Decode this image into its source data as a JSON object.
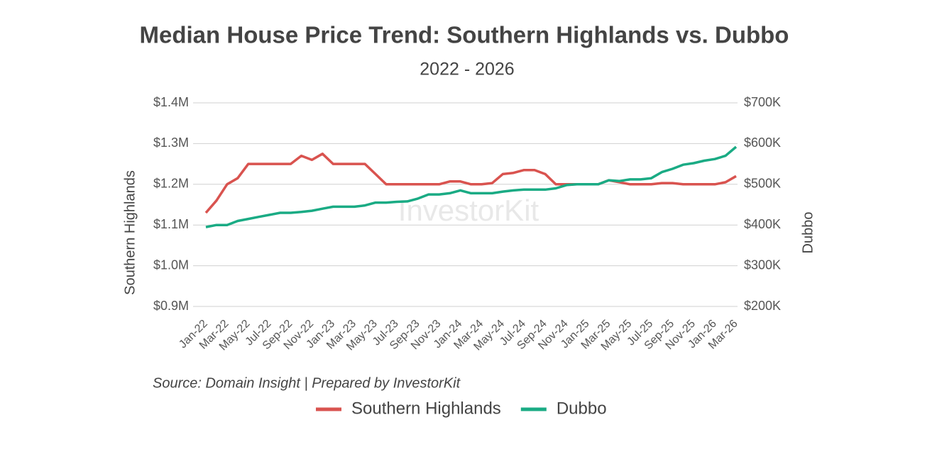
{
  "chart_data": {
    "type": "line",
    "title": "Median House Price Trend: Southern Highlands vs. Dubbo",
    "subtitle": "2022 - 2026",
    "y_label": "Southern Highlands",
    "y2_label": "Dubbo",
    "source": "Source: Domain Insight | Prepared by InvestorKit",
    "watermark": "InvestorKit",
    "categories": [
      "Jan-22",
      null,
      "Mar-22",
      null,
      "May-22",
      null,
      "Jul-22",
      null,
      "Sep-22",
      null,
      "Nov-22",
      null,
      "Jan-23",
      null,
      "Mar-23",
      null,
      "May-23",
      null,
      "Jul-23",
      null,
      "Sep-23",
      null,
      "Nov-23",
      null,
      "Jan-24",
      null,
      "Mar-24",
      null,
      "May-24",
      null,
      "Jul-24",
      null,
      "Sep-24",
      null,
      "Nov-24",
      null,
      "Jan-25",
      null,
      "Mar-25",
      null,
      "May-25",
      null,
      "Jul-25",
      null,
      "Sep-25",
      null,
      "Nov-25",
      null,
      "Jan-26",
      null,
      "Mar-26"
    ],
    "series": [
      {
        "name": "Southern Highlands",
        "color": "#d9534f",
        "axis": "y",
        "values": [
          1130000,
          1160000,
          1200000,
          1215000,
          1250000,
          1250000,
          1250000,
          1250000,
          1250000,
          1270000,
          1260000,
          1275000,
          1250000,
          1250000,
          1250000,
          1250000,
          1225000,
          1200000,
          1200000,
          1200000,
          1200000,
          1200000,
          1200000,
          1207000,
          1207000,
          1200000,
          1200000,
          1203000,
          1225000,
          1228000,
          1235000,
          1235000,
          1225000,
          1200000,
          1200000,
          1200000,
          1200000,
          1200000,
          1210000,
          1205000,
          1200000,
          1200000,
          1200000,
          1203000,
          1203000,
          1200000,
          1200000,
          1200000,
          1200000,
          1205000,
          1220000
        ]
      },
      {
        "name": "Dubbo",
        "color": "#1aab84",
        "axis": "y2",
        "values": [
          395000,
          400000,
          400000,
          410000,
          415000,
          420000,
          425000,
          430000,
          430000,
          432000,
          435000,
          440000,
          445000,
          445000,
          445000,
          448000,
          455000,
          455000,
          457000,
          458000,
          465000,
          475000,
          475000,
          478000,
          485000,
          478000,
          478000,
          478000,
          482000,
          485000,
          487000,
          487000,
          487000,
          490000,
          498000,
          500000,
          500000,
          500000,
          510000,
          508000,
          512000,
          512000,
          515000,
          530000,
          538000,
          548000,
          552000,
          558000,
          562000,
          570000,
          592000
        ]
      }
    ],
    "ylim": [
      900000,
      1400000
    ],
    "yticks": [
      {
        "value": 900000,
        "label": "$0.9M"
      },
      {
        "value": 1000000,
        "label": "$1.0M"
      },
      {
        "value": 1100000,
        "label": "$1.1M"
      },
      {
        "value": 1200000,
        "label": "$1.2M"
      },
      {
        "value": 1300000,
        "label": "$1.3M"
      },
      {
        "value": 1400000,
        "label": "$1.4M"
      }
    ],
    "y2lim": [
      200000,
      700000
    ],
    "y2ticks": [
      {
        "value": 200000,
        "label": "$200K"
      },
      {
        "value": 300000,
        "label": "$300K"
      },
      {
        "value": 400000,
        "label": "$400K"
      },
      {
        "value": 500000,
        "label": "$500K"
      },
      {
        "value": 600000,
        "label": "$600K"
      },
      {
        "value": 700000,
        "label": "$700K"
      }
    ],
    "grid": true,
    "legend": "bottom"
  }
}
